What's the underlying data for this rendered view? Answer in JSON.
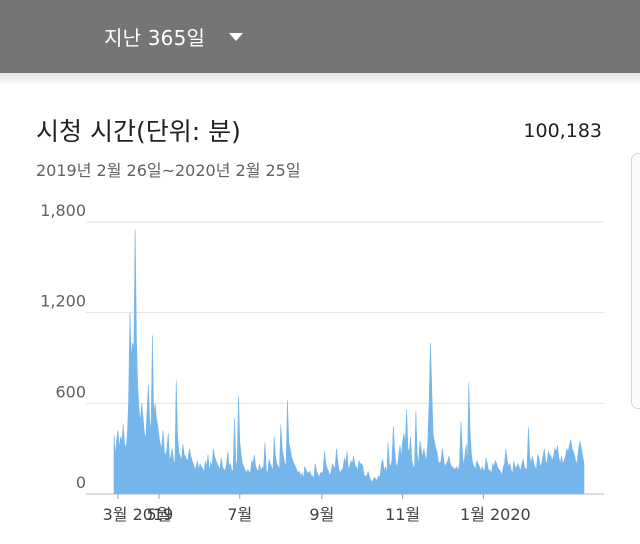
{
  "header": {
    "range_label": "지난 365일"
  },
  "card": {
    "total": "100,183"
  },
  "colors": {
    "area": "#74b6ec",
    "header_bg": "#757575",
    "grid": "#e3e3e3"
  },
  "chart_data": {
    "type": "area",
    "title": "시청 시간(단위: 분)",
    "subtitle": "2019년 2월 26일~2020년 2월 25일",
    "ylim": [
      0,
      1800
    ],
    "y_ticks": [
      {
        "value": 0,
        "label": "0"
      },
      {
        "value": 600,
        "label": "600"
      },
      {
        "value": 1200,
        "label": "1,200"
      },
      {
        "value": 1800,
        "label": "1,800"
      }
    ],
    "x_ticks": [
      {
        "day": 3,
        "label": "3월 2019"
      },
      {
        "day": 34,
        "label": "5월"
      },
      {
        "day": 95,
        "label": "7월"
      },
      {
        "day": 157,
        "label": "9월"
      },
      {
        "day": 218,
        "label": "11월"
      },
      {
        "day": 279,
        "label": "1월 2020"
      }
    ],
    "x_start": "2019-02-26",
    "x_end": "2020-02-25",
    "series": [
      {
        "values": [
          390,
          250,
          360,
          420,
          300,
          380,
          350,
          460,
          330,
          300,
          380,
          600,
          1200,
          900,
          1000,
          960,
          1750,
          1000,
          700,
          550,
          480,
          600,
          500,
          400,
          360,
          560,
          720,
          480,
          420,
          1050,
          520,
          600,
          500,
          460,
          380,
          330,
          300,
          420,
          280,
          250,
          300,
          400,
          220,
          250,
          300,
          220,
          200,
          750,
          380,
          280,
          250,
          220,
          330,
          260,
          250,
          220,
          230,
          300,
          250,
          220,
          200,
          160,
          180,
          220,
          160,
          200,
          180,
          170,
          140,
          220,
          180,
          260,
          150,
          210,
          180,
          300,
          250,
          220,
          200,
          180,
          160,
          240,
          180,
          160,
          160,
          200,
          280,
          180,
          200,
          150,
          160,
          500,
          220,
          180,
          650,
          350,
          260,
          200,
          180,
          160,
          140,
          160,
          150,
          130,
          220,
          200,
          260,
          180,
          160,
          150,
          200,
          150,
          180,
          170,
          340,
          160,
          130,
          230,
          200,
          180,
          150,
          380,
          250,
          200,
          180,
          170,
          460,
          300,
          250,
          200,
          200,
          620,
          350,
          300,
          250,
          220,
          200,
          180,
          160,
          140,
          150,
          120,
          140,
          100,
          180,
          160,
          140,
          140,
          150,
          120,
          120,
          100,
          200,
          150,
          130,
          110,
          140,
          140,
          150,
          280,
          200,
          170,
          150,
          120,
          150,
          200,
          180,
          170,
          300,
          220,
          160,
          140,
          160,
          170,
          240,
          200,
          280,
          160,
          180,
          220,
          200,
          250,
          190,
          180,
          150,
          220,
          200,
          200,
          180,
          120,
          120,
          120,
          150,
          110,
          90,
          80,
          100,
          110,
          90,
          100,
          120,
          110,
          200,
          230,
          150,
          180,
          130,
          340,
          200,
          180,
          230,
          450,
          280,
          200,
          180,
          250,
          320,
          240,
          350,
          400,
          330,
          560,
          300,
          280,
          380,
          220,
          180,
          180,
          550,
          260,
          190,
          350,
          300,
          240,
          300,
          250,
          220,
          350,
          600,
          1000,
          700,
          400,
          350,
          300,
          280,
          220,
          200,
          220,
          300,
          230,
          180,
          200,
          220,
          250,
          200,
          180,
          180,
          160,
          170,
          180,
          150,
          200,
          480,
          300,
          180,
          250,
          330,
          200,
          740,
          400,
          260,
          200,
          180,
          160,
          220,
          200,
          180,
          150,
          180,
          160,
          150,
          240,
          200,
          150,
          160,
          130,
          200,
          180,
          220,
          200,
          170,
          160,
          150,
          120,
          180,
          200,
          300,
          220,
          180,
          200,
          160,
          130,
          220,
          180,
          170,
          200,
          180,
          150,
          200,
          230,
          180,
          160,
          170,
          440,
          250,
          200,
          250,
          200,
          180,
          160,
          260,
          240,
          180,
          200,
          250,
          300,
          220,
          200,
          280,
          260,
          250,
          220,
          250,
          300,
          280,
          320,
          240,
          200,
          250,
          200,
          220,
          250,
          300,
          280,
          320,
          360,
          300,
          280,
          250,
          200,
          220,
          300,
          350,
          300,
          250,
          200
        ]
      }
    ]
  }
}
